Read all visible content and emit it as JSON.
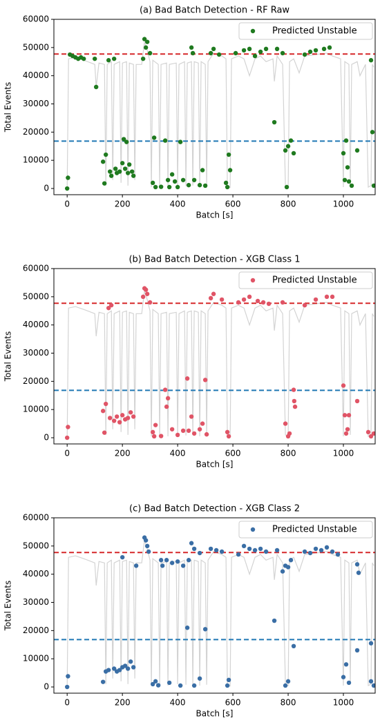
{
  "chart_data": [
    {
      "type": "scatter",
      "title": "(a) Bad Batch Detection - RF Raw",
      "x_label": "Batch [s]",
      "y_label": "Total Events",
      "xlim": [
        -48,
        1115
      ],
      "ylim": [
        -2200,
        60000
      ],
      "xticks": [
        0,
        200,
        400,
        600,
        800,
        1000
      ],
      "yticks": [
        0,
        10000,
        20000,
        30000,
        40000,
        50000,
        60000
      ],
      "legend": "upper right",
      "line": {
        "color": "#d3d3d3",
        "x": [
          0,
          5,
          30,
          60,
          100,
          105,
          115,
          135,
          140,
          145,
          160,
          165,
          170,
          190,
          195,
          200,
          215,
          220,
          225,
          240,
          245,
          250,
          270,
          280,
          290,
          300,
          305,
          310,
          330,
          335,
          340,
          360,
          365,
          370,
          395,
          400,
          405,
          425,
          430,
          435,
          450,
          455,
          460,
          475,
          480,
          485,
          500,
          505,
          510,
          530,
          560,
          575,
          580,
          590,
          595,
          620,
          640,
          660,
          680,
          700,
          720,
          745,
          750,
          760,
          780,
          790,
          800,
          805,
          820,
          840,
          860,
          900,
          940,
          960,
          990,
          1000,
          1005,
          1020,
          1025,
          1030,
          1050,
          1060,
          1080,
          1090,
          1100,
          1105,
          1110
        ],
        "y": [
          0,
          46000,
          46500,
          45500,
          44000,
          36000,
          44500,
          44000,
          1000,
          44000,
          45000,
          3000,
          44000,
          45000,
          2000,
          44500,
          45000,
          1000,
          44500,
          44000,
          3000,
          44000,
          44000,
          52000,
          49000,
          45000,
          500,
          45500,
          44000,
          1000,
          44000,
          44500,
          500,
          44000,
          44500,
          1000,
          44000,
          45000,
          800,
          44500,
          45000,
          1000,
          45000,
          44500,
          500,
          45000,
          44000,
          800,
          45000,
          48000,
          47000,
          46000,
          500,
          300,
          46000,
          47000,
          46000,
          40000,
          46000,
          47000,
          45000,
          46000,
          38000,
          47000,
          44000,
          1000,
          500,
          45000,
          46000,
          41000,
          47000,
          47500,
          48000,
          47000,
          46000,
          500,
          45000,
          44000,
          1000,
          44000,
          45000,
          40000,
          44000,
          500,
          1000,
          44000,
          43000
        ]
      },
      "hlines": [
        {
          "value": 47700,
          "color": "#d62728"
        },
        {
          "value": 16800,
          "color": "#1f77b4"
        }
      ],
      "series": [
        {
          "name": "Predicted Unstable",
          "color": "#1f7a1f",
          "x": [
            0,
            3,
            10,
            20,
            30,
            40,
            50,
            60,
            100,
            105,
            130,
            135,
            140,
            150,
            155,
            160,
            170,
            175,
            180,
            190,
            200,
            205,
            210,
            215,
            220,
            225,
            235,
            240,
            275,
            280,
            285,
            290,
            300,
            310,
            315,
            320,
            340,
            355,
            365,
            370,
            380,
            390,
            400,
            410,
            420,
            440,
            450,
            455,
            460,
            480,
            490,
            500,
            520,
            530,
            550,
            575,
            580,
            585,
            590,
            610,
            640,
            660,
            680,
            700,
            720,
            750,
            760,
            780,
            790,
            795,
            800,
            810,
            820,
            860,
            880,
            900,
            930,
            950,
            1000,
            1005,
            1010,
            1015,
            1020,
            1030,
            1050,
            1100,
            1105,
            1110
          ],
          "values": [
            0,
            3800,
            47500,
            47000,
            46500,
            46000,
            46500,
            46000,
            46000,
            36000,
            9500,
            1800,
            12000,
            45500,
            6000,
            4500,
            46000,
            7000,
            5500,
            6000,
            9000,
            17500,
            7000,
            16500,
            5500,
            8500,
            6000,
            4500,
            46000,
            53000,
            50000,
            52000,
            48000,
            2000,
            18000,
            500,
            600,
            17000,
            3000,
            500,
            5000,
            2500,
            500,
            16500,
            3000,
            1200,
            50000,
            48000,
            3000,
            1200,
            6500,
            1000,
            48000,
            49500,
            47500,
            2000,
            500,
            12000,
            6500,
            48000,
            49000,
            49500,
            47000,
            48500,
            49500,
            23500,
            49500,
            48000,
            13500,
            500,
            15000,
            17000,
            12500,
            47500,
            48500,
            49000,
            49500,
            50000,
            12500,
            3000,
            17000,
            7500,
            2500,
            1000,
            13500,
            45500,
            20000,
            1000
          ]
        }
      ]
    },
    {
      "type": "scatter",
      "title": "(b) Bad Batch Detection - XGB Class 1",
      "x_label": "Batch [s]",
      "y_label": "Total Events",
      "xlim": [
        -48,
        1115
      ],
      "ylim": [
        -2200,
        60000
      ],
      "xticks": [
        0,
        200,
        400,
        600,
        800,
        1000
      ],
      "yticks": [
        0,
        10000,
        20000,
        30000,
        40000,
        50000,
        60000
      ],
      "legend": "upper right",
      "line": {
        "color": "#d3d3d3",
        "x": [
          0,
          5,
          30,
          60,
          100,
          105,
          115,
          135,
          140,
          145,
          160,
          165,
          170,
          190,
          195,
          200,
          215,
          220,
          225,
          240,
          245,
          250,
          270,
          280,
          290,
          300,
          305,
          310,
          330,
          335,
          340,
          360,
          365,
          370,
          395,
          400,
          405,
          425,
          430,
          435,
          450,
          455,
          460,
          475,
          480,
          485,
          500,
          505,
          510,
          530,
          560,
          575,
          580,
          590,
          595,
          620,
          640,
          660,
          680,
          700,
          720,
          745,
          750,
          760,
          780,
          790,
          800,
          805,
          820,
          840,
          860,
          900,
          940,
          960,
          990,
          1000,
          1005,
          1020,
          1025,
          1030,
          1050,
          1060,
          1080,
          1090,
          1100,
          1105,
          1110
        ],
        "y": [
          0,
          46000,
          46500,
          45500,
          44000,
          36000,
          44500,
          44000,
          1000,
          44000,
          45000,
          3000,
          44000,
          45000,
          2000,
          44500,
          45000,
          1000,
          44500,
          44000,
          3000,
          44000,
          44000,
          52000,
          49000,
          45000,
          500,
          45500,
          44000,
          1000,
          44000,
          44500,
          500,
          44000,
          44500,
          1000,
          44000,
          45000,
          800,
          44500,
          45000,
          1000,
          45000,
          44500,
          500,
          45000,
          44000,
          800,
          45000,
          48000,
          47000,
          46000,
          500,
          300,
          46000,
          47000,
          46000,
          40000,
          46000,
          47000,
          45000,
          46000,
          38000,
          47000,
          44000,
          1000,
          500,
          45000,
          46000,
          41000,
          47000,
          47500,
          48000,
          47000,
          46000,
          500,
          45000,
          44000,
          1000,
          44000,
          45000,
          40000,
          44000,
          500,
          1000,
          44000,
          43000
        ]
      },
      "hlines": [
        {
          "value": 47700,
          "color": "#d62728"
        },
        {
          "value": 16800,
          "color": "#1f77b4"
        }
      ],
      "series": [
        {
          "name": "Predicted Unstable",
          "color": "#e05466",
          "x": [
            0,
            3,
            130,
            135,
            140,
            150,
            160,
            155,
            170,
            180,
            190,
            200,
            210,
            220,
            230,
            240,
            275,
            280,
            285,
            290,
            300,
            310,
            315,
            320,
            340,
            355,
            360,
            365,
            380,
            400,
            420,
            435,
            440,
            450,
            460,
            480,
            490,
            500,
            505,
            520,
            530,
            560,
            580,
            585,
            620,
            640,
            660,
            690,
            710,
            730,
            780,
            790,
            800,
            805,
            820,
            822,
            825,
            860,
            900,
            940,
            960,
            1000,
            1005,
            1010,
            1015,
            1020,
            1050,
            1090,
            1100,
            1110
          ],
          "values": [
            0,
            3800,
            9500,
            1800,
            12000,
            46000,
            47000,
            7000,
            6000,
            7500,
            5500,
            8000,
            6500,
            7000,
            9000,
            7500,
            50000,
            53000,
            52500,
            51000,
            48000,
            2000,
            500,
            4500,
            600,
            17000,
            11000,
            14000,
            3000,
            1000,
            2500,
            21000,
            2500,
            7500,
            1500,
            3000,
            5000,
            20500,
            1200,
            49500,
            51000,
            49000,
            2000,
            500,
            48000,
            49000,
            50000,
            48500,
            48000,
            47500,
            48000,
            5000,
            500,
            1500,
            17000,
            13000,
            11000,
            47000,
            49000,
            50000,
            50000,
            18500,
            8000,
            1500,
            3000,
            8000,
            13000,
            2000,
            500,
            1500
          ]
        }
      ]
    },
    {
      "type": "scatter",
      "title": "(c) Bad Batch Detection - XGB Class 2",
      "x_label": "Batch [s]",
      "y_label": "Total Events",
      "xlim": [
        -48,
        1115
      ],
      "ylim": [
        -2200,
        60000
      ],
      "xticks": [
        0,
        200,
        400,
        600,
        800,
        1000
      ],
      "yticks": [
        0,
        10000,
        20000,
        30000,
        40000,
        50000,
        60000
      ],
      "legend": "upper right",
      "line": {
        "color": "#d3d3d3",
        "x": [
          0,
          5,
          30,
          60,
          100,
          105,
          115,
          135,
          140,
          145,
          160,
          165,
          170,
          190,
          195,
          200,
          215,
          220,
          225,
          240,
          245,
          250,
          270,
          280,
          290,
          300,
          305,
          310,
          330,
          335,
          340,
          360,
          365,
          370,
          395,
          400,
          405,
          425,
          430,
          435,
          450,
          455,
          460,
          475,
          480,
          485,
          500,
          505,
          510,
          530,
          560,
          575,
          580,
          590,
          595,
          620,
          640,
          660,
          680,
          700,
          720,
          745,
          750,
          760,
          780,
          790,
          800,
          805,
          820,
          840,
          860,
          900,
          940,
          960,
          990,
          1000,
          1005,
          1020,
          1025,
          1030,
          1050,
          1060,
          1080,
          1090,
          1100,
          1105,
          1110
        ],
        "y": [
          0,
          46000,
          46500,
          45500,
          44000,
          36000,
          44500,
          44000,
          1000,
          44000,
          45000,
          3000,
          44000,
          45000,
          2000,
          44500,
          45000,
          1000,
          44500,
          44000,
          3000,
          44000,
          44000,
          52000,
          49000,
          45000,
          500,
          45500,
          44000,
          1000,
          44000,
          44500,
          500,
          44000,
          44500,
          1000,
          44000,
          45000,
          800,
          44500,
          45000,
          1000,
          45000,
          44500,
          500,
          45000,
          44000,
          800,
          45000,
          48000,
          47000,
          46000,
          500,
          300,
          46000,
          47000,
          46000,
          40000,
          46000,
          47000,
          45000,
          46000,
          38000,
          47000,
          44000,
          1000,
          500,
          45000,
          46000,
          41000,
          47000,
          47500,
          48000,
          47000,
          46000,
          500,
          45000,
          44000,
          1000,
          44000,
          45000,
          40000,
          44000,
          500,
          1000,
          44000,
          43000
        ]
      },
      "hlines": [
        {
          "value": 47700,
          "color": "#d62728"
        },
        {
          "value": 16800,
          "color": "#1f77b4"
        }
      ],
      "series": [
        {
          "name": "Predicted Unstable",
          "color": "#3a6ea5",
          "x": [
            0,
            3,
            130,
            140,
            150,
            170,
            180,
            190,
            200,
            210,
            220,
            230,
            240,
            200,
            250,
            280,
            285,
            290,
            295,
            310,
            320,
            340,
            345,
            360,
            380,
            400,
            420,
            440,
            450,
            460,
            480,
            435,
            500,
            330,
            370,
            410,
            460,
            480,
            520,
            540,
            560,
            580,
            585,
            620,
            640,
            660,
            680,
            700,
            720,
            750,
            760,
            780,
            790,
            800,
            810,
            820,
            790,
            800,
            860,
            880,
            900,
            920,
            940,
            960,
            980,
            1000,
            1010,
            1020,
            1050,
            1055,
            1050,
            1100,
            1100,
            1110
          ],
          "values": [
            0,
            3800,
            1800,
            5500,
            6000,
            6500,
            5500,
            6000,
            7000,
            7500,
            6500,
            9000,
            7000,
            46000,
            43000,
            53000,
            52000,
            50000,
            48000,
            1000,
            2000,
            45000,
            43000,
            45000,
            44000,
            44500,
            43000,
            45000,
            51000,
            49000,
            47500,
            21000,
            20500,
            600,
            1500,
            500,
            500,
            3000,
            49000,
            48500,
            48000,
            500,
            2500,
            47000,
            50000,
            49000,
            48500,
            49000,
            48000,
            23500,
            48500,
            41000,
            43000,
            42500,
            45000,
            14500,
            500,
            2000,
            48000,
            47500,
            49000,
            48500,
            49500,
            48000,
            47000,
            3500,
            8000,
            1500,
            43500,
            40500,
            13000,
            15500,
            2000,
            500
          ]
        }
      ]
    }
  ]
}
